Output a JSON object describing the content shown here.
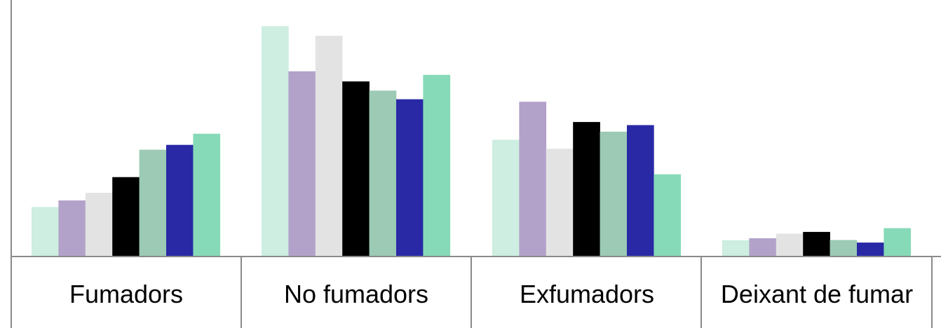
{
  "chart_data": {
    "type": "bar",
    "categories": [
      "Fumadors",
      "No fumadors",
      "Exfumadors",
      "Deixant de fumar"
    ],
    "series": [
      {
        "color": "#cdeee0",
        "values": [
          19.5,
          90.8,
          46.0,
          6.4
        ]
      },
      {
        "color": "#b2a2c9",
        "values": [
          22.1,
          73.0,
          61.0,
          7.2
        ]
      },
      {
        "color": "#e3e3e3",
        "values": [
          25.1,
          87.0,
          42.5,
          9.0
        ]
      },
      {
        "color": "#000000",
        "values": [
          31.3,
          69.0,
          53.0,
          9.7
        ]
      },
      {
        "color": "#9ccab5",
        "values": [
          42.1,
          65.4,
          49.2,
          6.5
        ]
      },
      {
        "color": "#2929a6",
        "values": [
          44.0,
          62.0,
          51.8,
          5.5
        ]
      },
      {
        "color": "#86dab8",
        "values": [
          48.4,
          71.6,
          32.4,
          11.2
        ]
      }
    ],
    "ylim": [
      0,
      100
    ],
    "grid": false,
    "legend": "none"
  }
}
